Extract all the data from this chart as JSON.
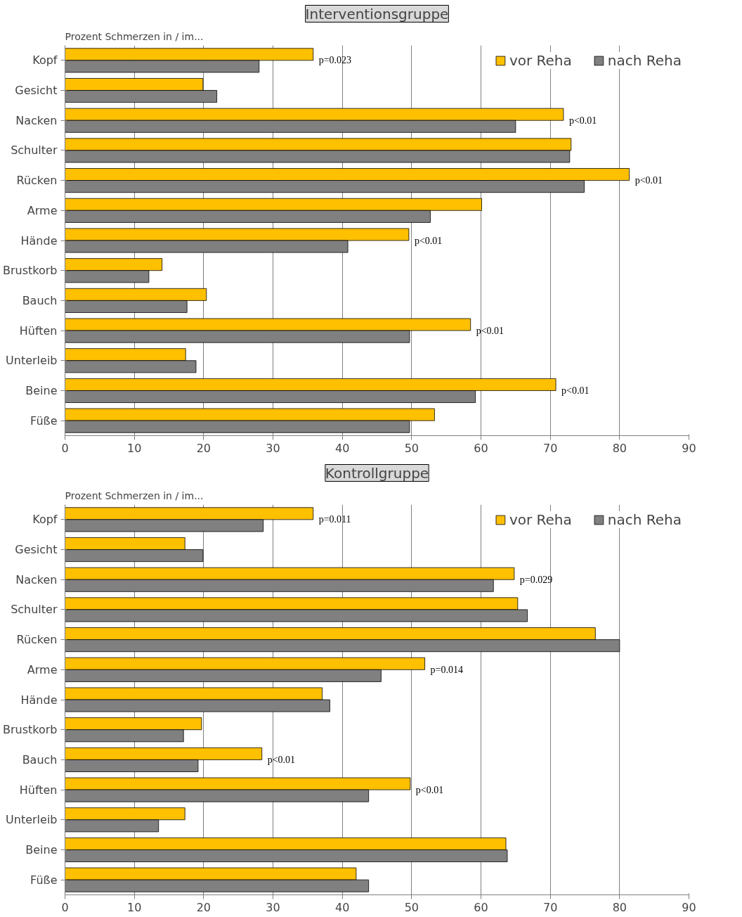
{
  "chart_data": [
    {
      "type": "bar",
      "orientation": "horizontal",
      "title": "Interventionsgruppe",
      "xlabel": "Prozent Schmerzen in / im...",
      "categories": [
        "Kopf",
        "Gesicht",
        "Nacken",
        "Schulter",
        "Rücken",
        "Arme",
        "Hände",
        "Brustkorb",
        "Bauch",
        "Hüften",
        "Unterleib",
        "Beine",
        "Füße"
      ],
      "series": [
        {
          "name": "vor Reha",
          "color": "#ffc000",
          "values": [
            35.8,
            19.9,
            71.9,
            73.0,
            81.4,
            60.1,
            49.6,
            14.0,
            20.4,
            58.5,
            17.4,
            70.8,
            53.3
          ]
        },
        {
          "name": "nach Reha",
          "color": "#808080",
          "values": [
            28.0,
            21.9,
            65.0,
            72.8,
            74.9,
            52.7,
            40.8,
            12.1,
            17.6,
            49.7,
            18.9,
            59.2,
            49.7
          ]
        }
      ],
      "xlim": [
        0,
        90
      ],
      "xticks": [
        0,
        10,
        20,
        30,
        40,
        50,
        60,
        70,
        80,
        90
      ],
      "grid": "x",
      "legend": "top right",
      "annotations": [
        {
          "text": "p=0.023",
          "x": 35.8,
          "y": "Kopf"
        },
        {
          "text": "p<0.01",
          "x": 71.9,
          "y": "Nacken"
        },
        {
          "text": "p<0.01",
          "x": 81.4,
          "y": "Rücken"
        },
        {
          "text": "p<0.01",
          "x": 49.6,
          "y": "Hände"
        },
        {
          "text": "p<0.01",
          "x": 58.5,
          "y": "Hüften"
        },
        {
          "text": "p<0.01",
          "x": 70.8,
          "y": "Beine"
        }
      ]
    },
    {
      "type": "bar",
      "orientation": "horizontal",
      "title": "Kontrollgruppe",
      "xlabel": "Prozent Schmerzen in / im...",
      "categories": [
        "Kopf",
        "Gesicht",
        "Nacken",
        "Schulter",
        "Rücken",
        "Arme",
        "Hände",
        "Brustkorb",
        "Bauch",
        "Hüften",
        "Unterleib",
        "Beine",
        "Füße"
      ],
      "series": [
        {
          "name": "vor Reha",
          "color": "#ffc000",
          "values": [
            35.8,
            17.3,
            64.8,
            65.3,
            76.5,
            51.9,
            37.1,
            19.7,
            28.4,
            49.8,
            17.3,
            63.6,
            42.0
          ]
        },
        {
          "name": "nach Reha",
          "color": "#808080",
          "values": [
            28.6,
            19.9,
            61.8,
            66.7,
            80.0,
            45.6,
            38.2,
            17.1,
            19.2,
            43.8,
            13.5,
            63.8,
            43.8
          ]
        }
      ],
      "xlim": [
        0,
        90
      ],
      "xticks": [
        0,
        10,
        20,
        30,
        40,
        50,
        60,
        70,
        80,
        90
      ],
      "grid": "x",
      "legend": "top right",
      "annotations": [
        {
          "text": "p=0.011",
          "x": 35.8,
          "y": "Kopf"
        },
        {
          "text": "p=0.029",
          "x": 64.8,
          "y": "Nacken"
        },
        {
          "text": "p=0.014",
          "x": 51.9,
          "y": "Arme"
        },
        {
          "text": "p<0.01",
          "x": 28.4,
          "y": "Bauch"
        },
        {
          "text": "p<0.01",
          "x": 49.8,
          "y": "Hüften"
        }
      ]
    }
  ]
}
